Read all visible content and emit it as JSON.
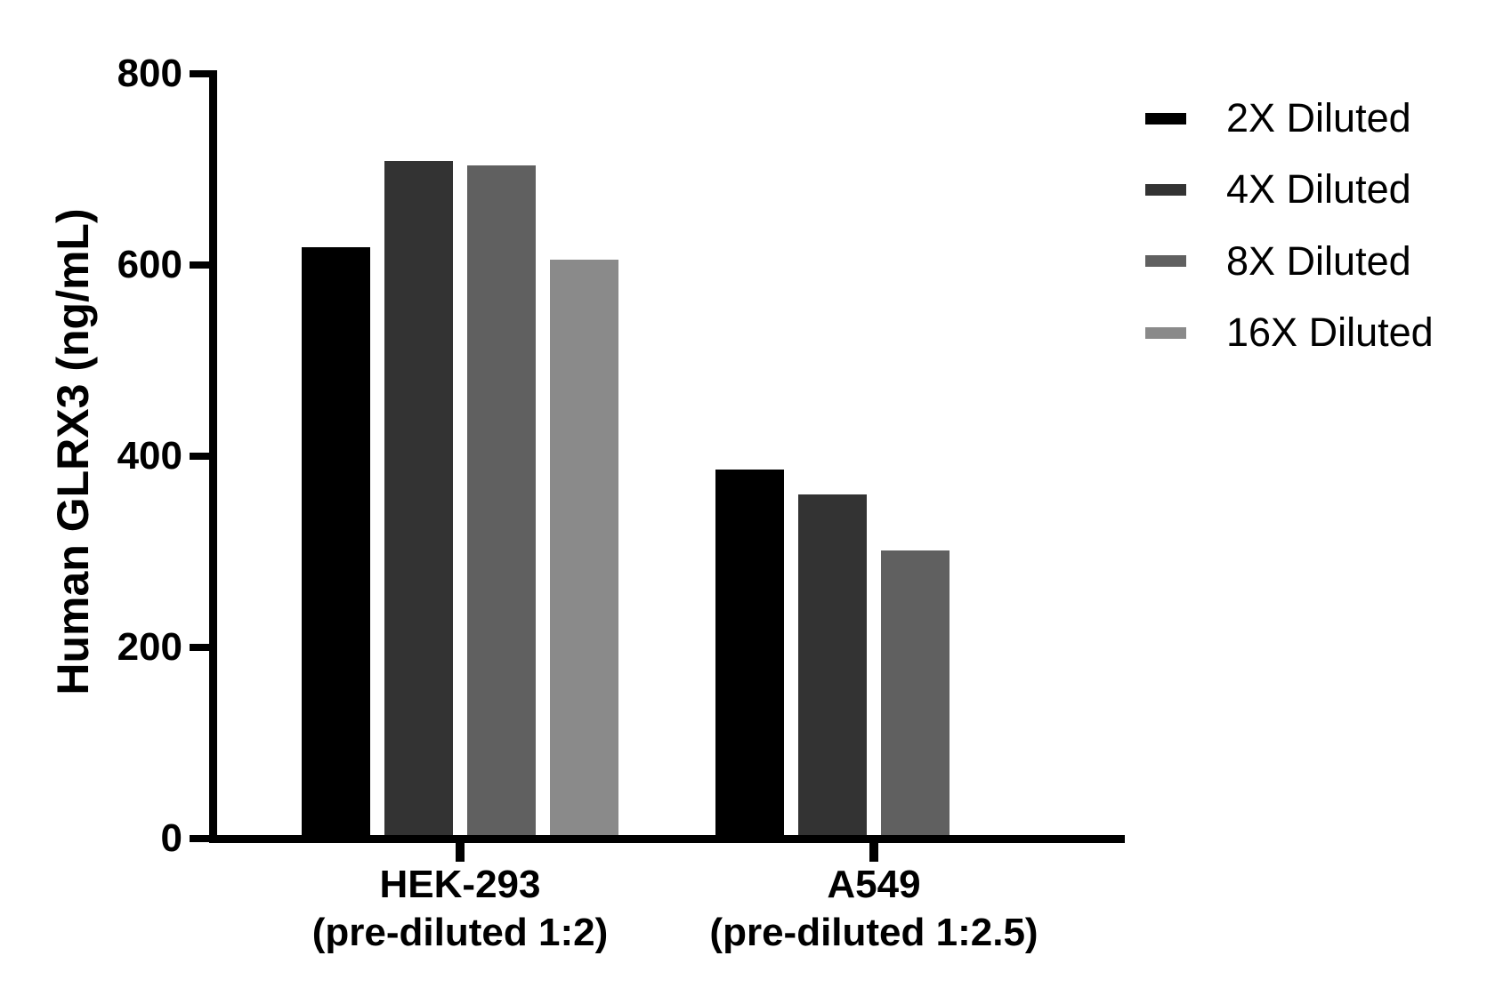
{
  "chart_data": {
    "type": "bar",
    "title": "",
    "xlabel": "",
    "ylabel": "Human GLRX3 (ng/mL)",
    "ylim": [
      0,
      800
    ],
    "yticks": [
      0,
      200,
      400,
      600,
      800
    ],
    "grid": false,
    "legend_position": "right",
    "groups": [
      {
        "label_line1": "HEK-293",
        "label_line2": "(pre-diluted 1:2)"
      },
      {
        "label_line1": "A549",
        "label_line2": "(pre-diluted 1:2.5)"
      }
    ],
    "series": [
      {
        "name": "2X Diluted",
        "color": "#000000",
        "values": [
          619,
          386
        ]
      },
      {
        "name": "4X Diluted",
        "color": "#333333",
        "values": [
          709,
          360
        ]
      },
      {
        "name": "8X Diluted",
        "color": "#606060",
        "values": [
          704,
          301
        ]
      },
      {
        "name": "16X Diluted",
        "color": "#8a8a8a",
        "values": [
          606,
          null
        ]
      }
    ],
    "axis_color": "#000000",
    "text_color": "#000000",
    "background_color": "#ffffff"
  }
}
